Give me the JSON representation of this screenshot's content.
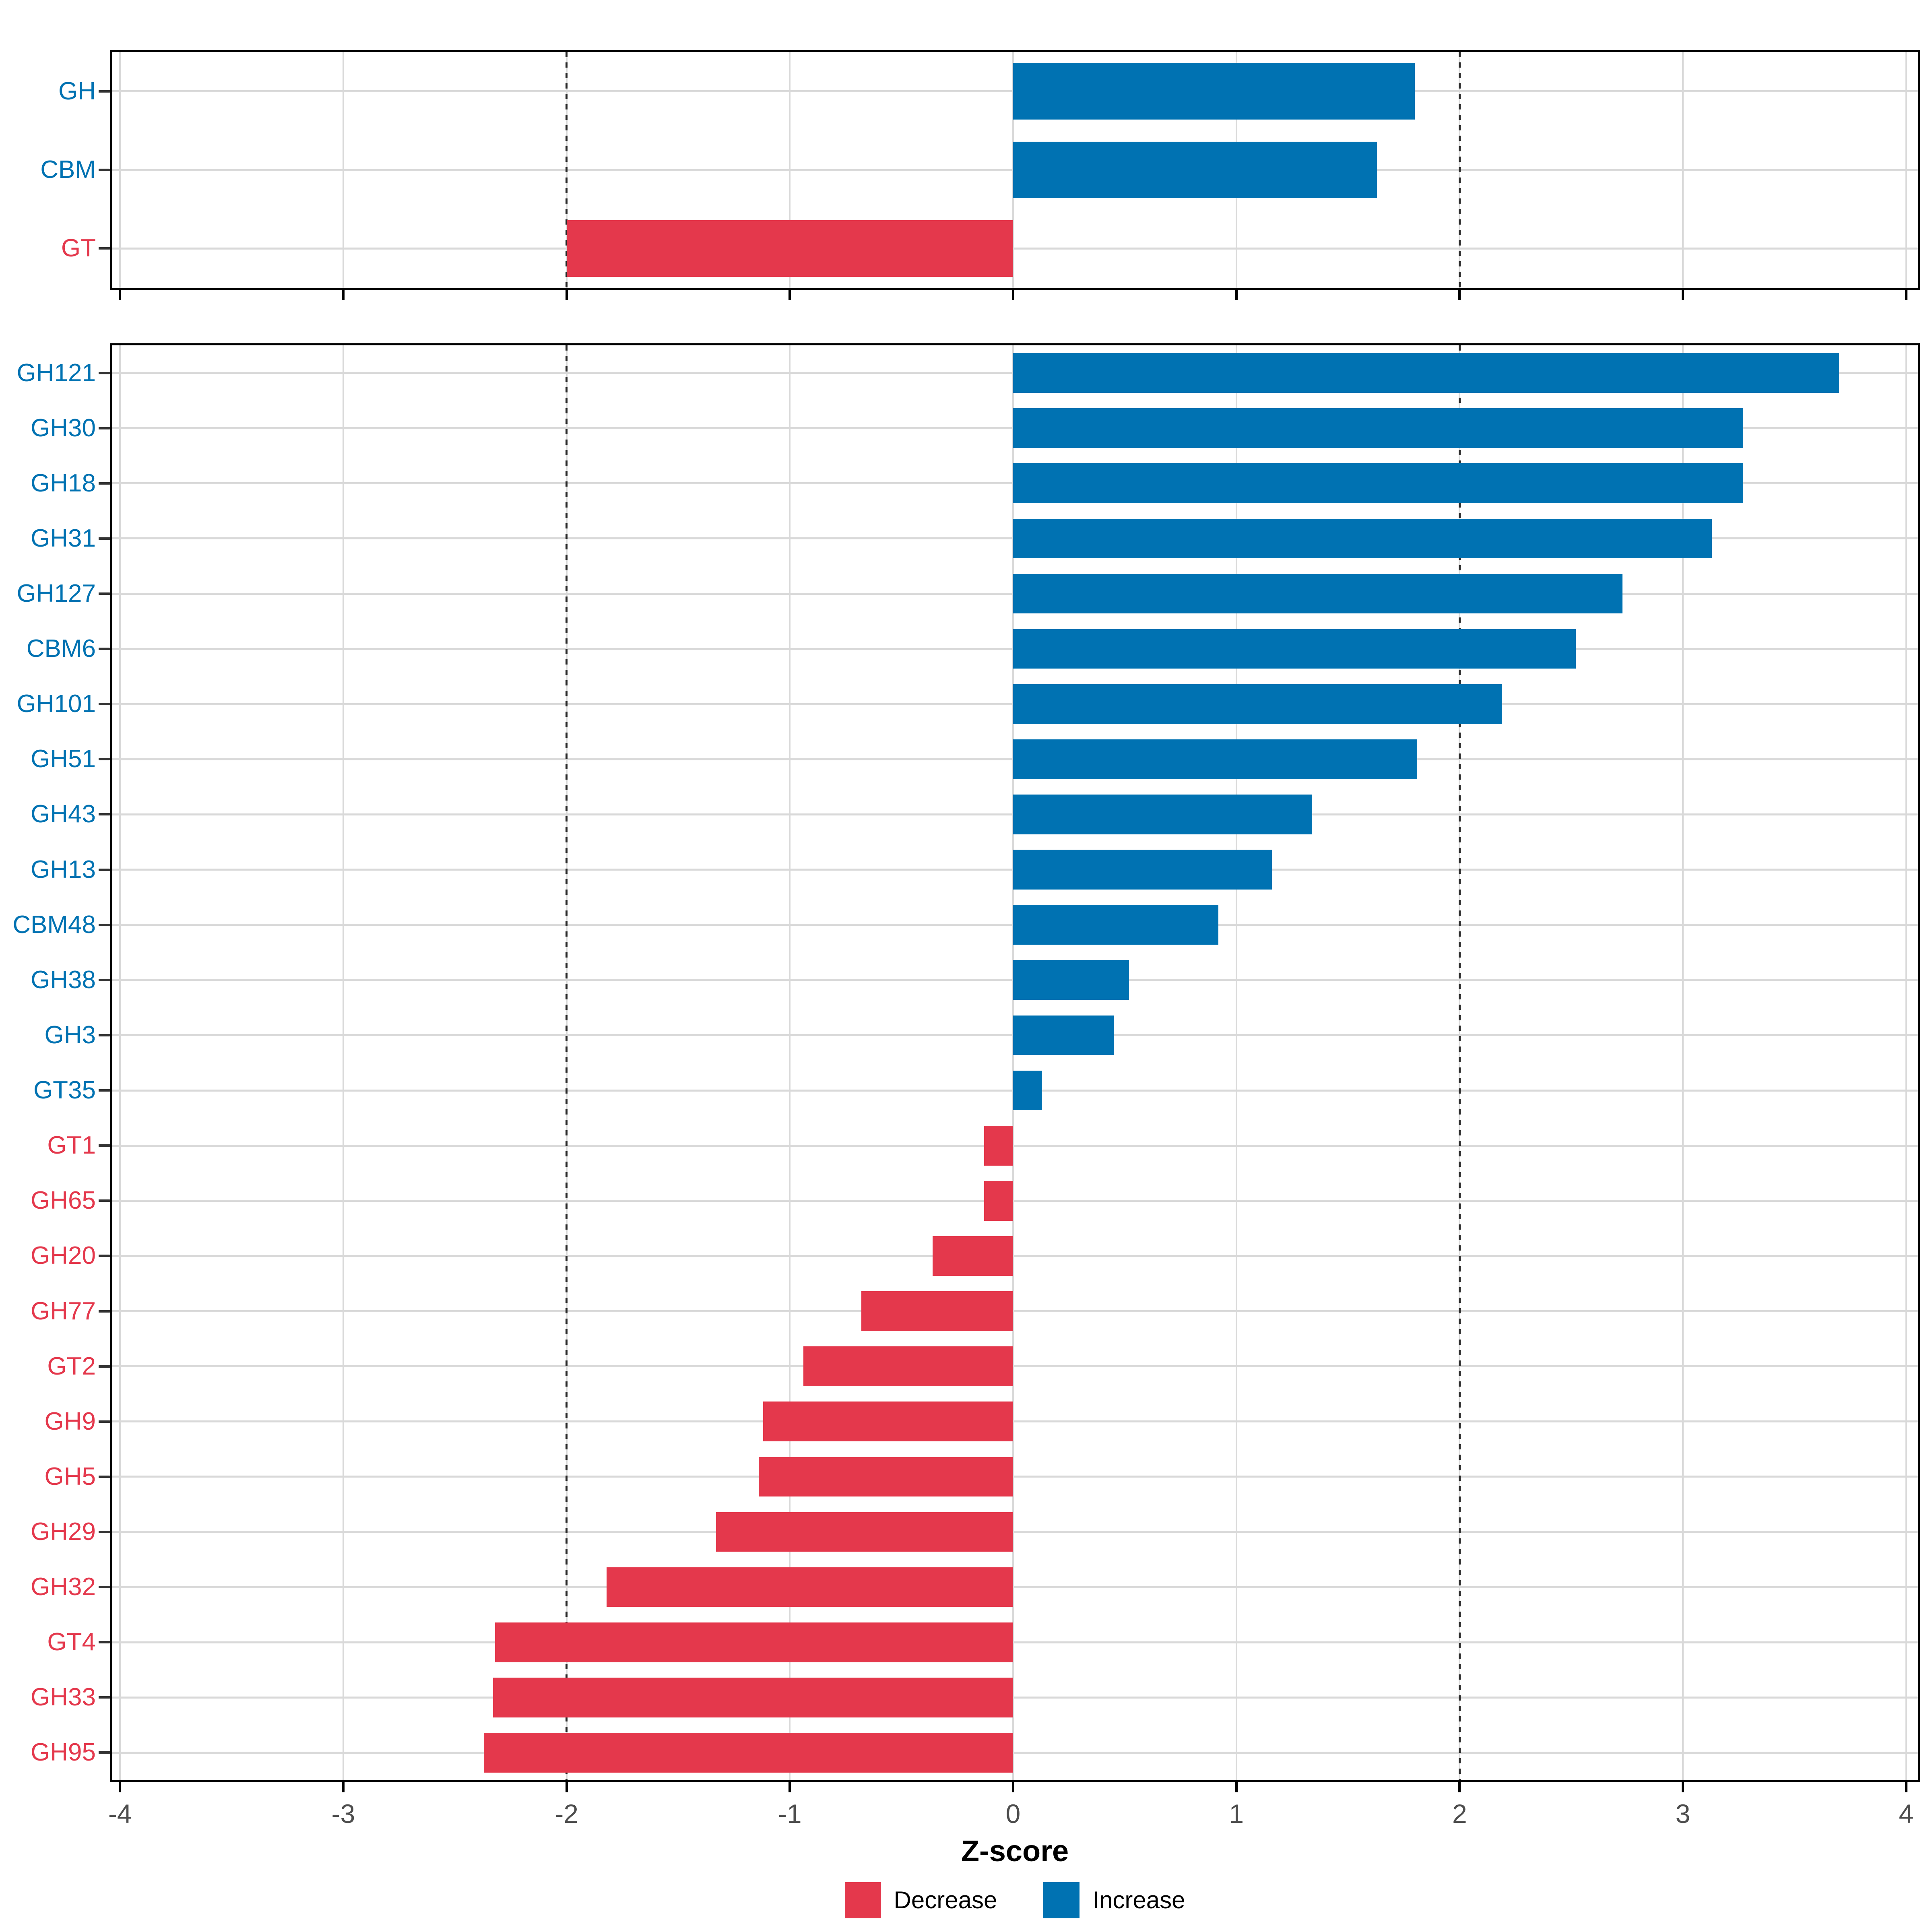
{
  "axis": {
    "label": "Z-score",
    "ticks": [
      -4,
      -3,
      -2,
      -1,
      0,
      1,
      2,
      3,
      4
    ],
    "range": [
      -4.05,
      4.06
    ],
    "reference_lines": [
      -2,
      2
    ]
  },
  "legend": {
    "items": [
      {
        "label": "Decrease",
        "color": "#E4384C"
      },
      {
        "label": "Increase",
        "color": "#0072B2"
      }
    ]
  },
  "colors": {
    "increase": "#0072B2",
    "decrease": "#E4384C",
    "grid": "#D9D9D9",
    "axis_text": "#4D4D4D",
    "panel_border": "#000000",
    "ref_line": "#2B2B2B"
  },
  "chart_data": [
    {
      "type": "bar",
      "orientation": "horizontal",
      "panel": "class-summary",
      "xlabel": "Z-score",
      "xlim": [
        -4.05,
        4.06
      ],
      "categories": [
        "GH",
        "CBM",
        "GT"
      ],
      "values": [
        1.8,
        1.63,
        -2.0
      ]
    },
    {
      "type": "bar",
      "orientation": "horizontal",
      "panel": "family-detail",
      "xlabel": "Z-score",
      "xlim": [
        -4.05,
        4.06
      ],
      "categories": [
        "GH121",
        "GH30",
        "GH18",
        "GH31",
        "GH127",
        "CBM6",
        "GH101",
        "GH51",
        "GH43",
        "GH13",
        "CBM48",
        "GH38",
        "GH3",
        "GT35",
        "GT1",
        "GH65",
        "GH20",
        "GH77",
        "GT2",
        "GH9",
        "GH5",
        "GH29",
        "GH32",
        "GT4",
        "GH33",
        "GH95"
      ],
      "values": [
        3.7,
        3.27,
        3.27,
        3.13,
        2.73,
        2.52,
        2.19,
        1.81,
        1.34,
        1.16,
        0.92,
        0.52,
        0.45,
        0.13,
        -0.13,
        -0.13,
        -0.36,
        -0.68,
        -0.94,
        -1.12,
        -1.14,
        -1.33,
        -1.82,
        -2.32,
        -2.33,
        -2.37
      ]
    }
  ]
}
